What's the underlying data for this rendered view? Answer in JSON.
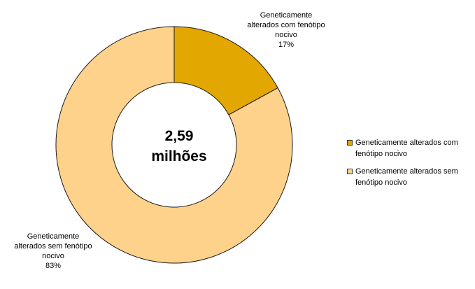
{
  "chart_data": {
    "type": "donut",
    "center_text": [
      "2,59",
      "milhões"
    ],
    "slices": [
      {
        "name": "Geneticamente alterados com fenótipo nocivo",
        "value": 17,
        "label_lines": [
          "Geneticamente",
          "alterados com fenótipo",
          "nocivo",
          "17%"
        ],
        "legend_lines": [
          "Geneticamente alterados com",
          "fenótipo nocivo"
        ],
        "color": "#E2A700"
      },
      {
        "name": "Geneticamente alterados sem fenótipo nocivo",
        "value": 83,
        "label_lines": [
          "Geneticamente",
          "alterados sem fenótipo",
          "nocivo",
          "83%"
        ],
        "legend_lines": [
          "Geneticamente alterados sem",
          "fenótipo nocivo"
        ],
        "color": "#FFD28B"
      }
    ],
    "legend_position": "right"
  }
}
